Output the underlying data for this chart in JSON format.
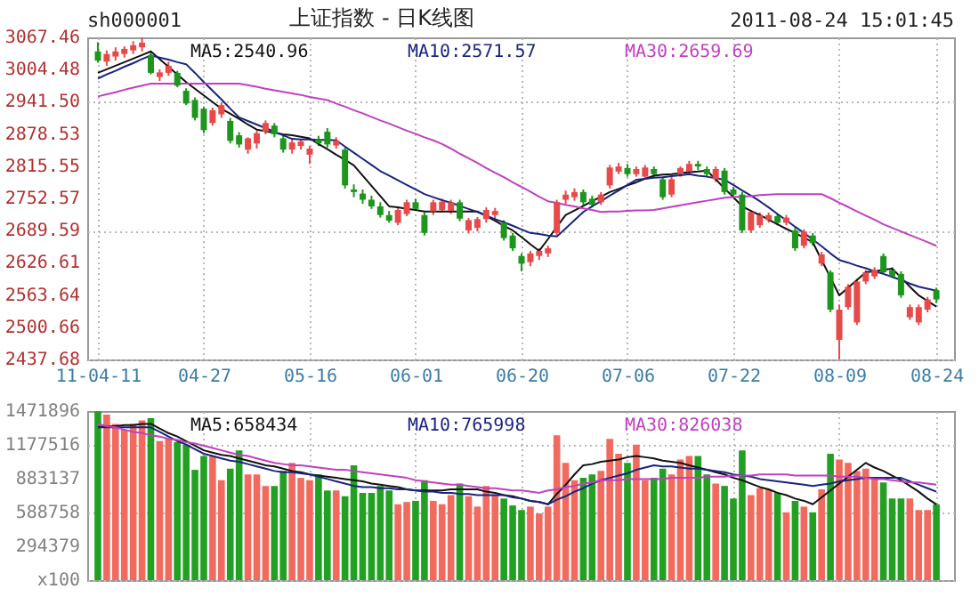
{
  "chart_data": [
    {
      "type": "candlestick",
      "title": "上证指数 - 日K线图",
      "annotations": [
        "sh000001",
        "2011-08-24 15:01:45"
      ],
      "categories": [
        "11-04-11",
        null,
        null,
        null,
        null,
        null,
        null,
        null,
        null,
        null,
        null,
        null,
        "04-27",
        null,
        null,
        null,
        null,
        null,
        null,
        null,
        null,
        null,
        null,
        null,
        "05-16",
        null,
        null,
        null,
        null,
        null,
        null,
        null,
        null,
        null,
        null,
        null,
        "06-01",
        null,
        null,
        null,
        null,
        null,
        null,
        null,
        null,
        null,
        null,
        null,
        "06-20",
        null,
        null,
        null,
        null,
        null,
        null,
        null,
        null,
        null,
        null,
        null,
        "07-06",
        null,
        null,
        null,
        null,
        null,
        null,
        null,
        null,
        null,
        null,
        null,
        "07-22",
        null,
        null,
        null,
        null,
        null,
        null,
        null,
        null,
        null,
        null,
        null,
        "08-09",
        null,
        null,
        null,
        null,
        null,
        null,
        null,
        null,
        null,
        null,
        "08-24"
      ],
      "ylim": [
        2437.68,
        3067.46
      ],
      "yticks": [
        2437.68,
        2500.66,
        2563.64,
        2626.61,
        2689.59,
        2752.57,
        2815.55,
        2878.53,
        {
          "value": 2941.5,
          "label": "2941.50"
        },
        3004.48,
        3067.46
      ],
      "grid": true,
      "legend": "top",
      "ohlc": [
        [
          3040,
          3058,
          3018,
          3022
        ],
        [
          3020,
          3042,
          3012,
          3035
        ],
        [
          3030,
          3048,
          3022,
          3040
        ],
        [
          3035,
          3050,
          3028,
          3045
        ],
        [
          3042,
          3060,
          3035,
          3052
        ],
        [
          3048,
          3067.46,
          3040,
          3057
        ],
        [
          3033,
          3040,
          2995,
          2998
        ],
        [
          2990,
          3005,
          2982,
          2999
        ],
        [
          2998,
          3020,
          2992,
          3012
        ],
        [
          2998,
          3002,
          2970,
          2973
        ],
        [
          2963,
          2968,
          2935,
          2938
        ],
        [
          2945,
          2950,
          2905,
          2910
        ],
        [
          2928,
          2932,
          2880,
          2886
        ],
        [
          2900,
          2930,
          2895,
          2925
        ],
        [
          2917,
          2940,
          2910,
          2935
        ],
        [
          2904,
          2910,
          2860,
          2865
        ],
        [
          2876,
          2882,
          2852,
          2858
        ],
        [
          2848,
          2872,
          2840,
          2870
        ],
        [
          2860,
          2885,
          2850,
          2880
        ],
        [
          2883,
          2905,
          2878,
          2900
        ],
        [
          2895,
          2900,
          2872,
          2878
        ],
        [
          2870,
          2875,
          2842,
          2848
        ],
        [
          2848,
          2868,
          2840,
          2862
        ],
        [
          2855,
          2868,
          2848,
          2864
        ],
        [
          2838,
          2855,
          2820,
          2850
        ],
        [
          2868,
          2875,
          2855,
          2860
        ],
        [
          2883,
          2890,
          2852,
          2858
        ],
        [
          2856,
          2872,
          2850,
          2866
        ],
        [
          2848,
          2852,
          2772,
          2778
        ],
        [
          2770,
          2780,
          2755,
          2765
        ],
        [
          2762,
          2770,
          2742,
          2750
        ],
        [
          2750,
          2758,
          2732,
          2737
        ],
        [
          2737,
          2745,
          2715,
          2720
        ],
        [
          2720,
          2728,
          2705,
          2709
        ],
        [
          2705,
          2735,
          2700,
          2730
        ],
        [
          2722,
          2750,
          2718,
          2745
        ],
        [
          2745,
          2752,
          2728,
          2732
        ],
        [
          2720,
          2725,
          2680,
          2685
        ],
        [
          2727,
          2750,
          2720,
          2745
        ],
        [
          2730,
          2752,
          2725,
          2746
        ],
        [
          2728,
          2750,
          2722,
          2745
        ],
        [
          2745,
          2750,
          2708,
          2713
        ],
        [
          2690,
          2714,
          2684,
          2710
        ],
        [
          2695,
          2716,
          2688,
          2712
        ],
        [
          2712,
          2735,
          2705,
          2730
        ],
        [
          2720,
          2734,
          2712,
          2728
        ],
        [
          2705,
          2710,
          2670,
          2675
        ],
        [
          2680,
          2685,
          2650,
          2655
        ],
        [
          2640,
          2645,
          2610,
          2625
        ],
        [
          2628,
          2650,
          2620,
          2645
        ],
        [
          2640,
          2655,
          2632,
          2650
        ],
        [
          2645,
          2660,
          2638,
          2655
        ],
        [
          2685,
          2750,
          2680,
          2745
        ],
        [
          2750,
          2768,
          2742,
          2760
        ],
        [
          2755,
          2772,
          2748,
          2765
        ],
        [
          2765,
          2770,
          2740,
          2745
        ],
        [
          2752,
          2758,
          2735,
          2740
        ],
        [
          2745,
          2765,
          2740,
          2760
        ],
        [
          2778,
          2818,
          2772,
          2813
        ],
        [
          2805,
          2822,
          2800,
          2815
        ],
        [
          2812,
          2820,
          2795,
          2800
        ],
        [
          2800,
          2815,
          2795,
          2810
        ],
        [
          2795,
          2818,
          2790,
          2813
        ],
        [
          2810,
          2815,
          2795,
          2800
        ],
        [
          2790,
          2795,
          2750,
          2755
        ],
        [
          2760,
          2795,
          2755,
          2790
        ],
        [
          2800,
          2815,
          2795,
          2812
        ],
        [
          2805,
          2826,
          2800,
          2820
        ],
        [
          2820,
          2826,
          2808,
          2815
        ],
        [
          2810,
          2815,
          2795,
          2800
        ],
        [
          2790,
          2815,
          2785,
          2810
        ],
        [
          2807,
          2812,
          2760,
          2765
        ],
        [
          2770,
          2775,
          2755,
          2760
        ],
        [
          2760,
          2765,
          2685,
          2690
        ],
        [
          2690,
          2730,
          2685,
          2726
        ],
        [
          2700,
          2725,
          2695,
          2720
        ],
        [
          2710,
          2725,
          2705,
          2720
        ],
        [
          2718,
          2722,
          2700,
          2705
        ],
        [
          2705,
          2720,
          2700,
          2715
        ],
        [
          2690,
          2695,
          2650,
          2655
        ],
        [
          2660,
          2692,
          2655,
          2688
        ],
        [
          2680,
          2685,
          2660,
          2665
        ],
        [
          2625,
          2648,
          2620,
          2643
        ],
        [
          2608,
          2612,
          2530,
          2535
        ],
        [
          2476,
          2545,
          2437.68,
          2535
        ],
        [
          2540,
          2585,
          2535,
          2580
        ],
        [
          2510,
          2595,
          2505,
          2590
        ],
        [
          2590,
          2612,
          2585,
          2608
        ],
        [
          2600,
          2618,
          2595,
          2612
        ],
        [
          2640,
          2645,
          2605,
          2608
        ],
        [
          2612,
          2618,
          2598,
          2600
        ],
        [
          2605,
          2610,
          2558,
          2563
        ],
        [
          2520,
          2545,
          2515,
          2540
        ],
        [
          2510,
          2545,
          2505,
          2540
        ],
        [
          2535,
          2560,
          2530,
          2555
        ],
        [
          2573,
          2578,
          2548,
          2555
        ]
      ],
      "colors": [
        "#1e961e",
        "#e84a4a",
        "#e84a4a",
        "#e84a4a",
        "#e84a4a",
        "#e84a4a",
        "#1e961e",
        "#e84a4a",
        "#e84a4a",
        "#1e961e",
        "#1e961e",
        "#1e961e",
        "#1e961e",
        "#e84a4a",
        "#e84a4a",
        "#1e961e",
        "#1e961e",
        "#e84a4a",
        "#e84a4a",
        "#e84a4a",
        "#1e961e",
        "#1e961e",
        "#e84a4a",
        "#e84a4a",
        "#e84a4a",
        "#1e961e",
        "#1e961e",
        "#e84a4a",
        "#1e961e",
        "#1e961e",
        "#1e961e",
        "#1e961e",
        "#1e961e",
        "#1e961e",
        "#e84a4a",
        "#e84a4a",
        "#1e961e",
        "#1e961e",
        "#e84a4a",
        "#e84a4a",
        "#e84a4a",
        "#1e961e",
        "#e84a4a",
        "#e84a4a",
        "#e84a4a",
        "#e84a4a",
        "#1e961e",
        "#1e961e",
        "#1e961e",
        "#e84a4a",
        "#e84a4a",
        "#e84a4a",
        "#e84a4a",
        "#e84a4a",
        "#e84a4a",
        "#1e961e",
        "#1e961e",
        "#e84a4a",
        "#e84a4a",
        "#e84a4a",
        "#1e961e",
        "#e84a4a",
        "#e84a4a",
        "#1e961e",
        "#1e961e",
        "#e84a4a",
        "#e84a4a",
        "#e84a4a",
        "#1e961e",
        "#1e961e",
        "#e84a4a",
        "#1e961e",
        "#1e961e",
        "#1e961e",
        "#e84a4a",
        "#e84a4a",
        "#e84a4a",
        "#1e961e",
        "#e84a4a",
        "#1e961e",
        "#e84a4a",
        "#1e961e",
        "#e84a4a",
        "#1e961e",
        "#e84a4a",
        "#e84a4a",
        "#e84a4a",
        "#e84a4a",
        "#e84a4a",
        "#1e961e",
        "#1e961e",
        "#1e961e",
        "#e84a4a",
        "#e84a4a",
        "#e84a4a",
        "#1e961e"
      ],
      "series": [
        {
          "type": "line",
          "name": "MA5:2540.96",
          "color": "#111111",
          "values": [
            2998,
            3005,
            3012,
            3019,
            3026,
            3033,
            3040,
            3025,
            3010,
            2995,
            2980,
            2967,
            2954,
            2941,
            2928,
            2918,
            2908,
            2897,
            2887,
            2884,
            2881,
            2878,
            2876,
            2873,
            2870,
            2859,
            2849,
            2838,
            2828,
            2817,
            2797,
            2777,
            2757,
            2737,
            2735,
            2732,
            2730,
            2727,
            2727,
            2727,
            2727,
            2727,
            2727,
            2727,
            2718,
            2709,
            2699,
            2690,
            2677,
            2663,
            2650,
            2673,
            2697,
            2720,
            2729,
            2738,
            2747,
            2756,
            2765,
            2771,
            2778,
            2784,
            2791,
            2797,
            2799,
            2800,
            2802,
            2804,
            2805,
            2807,
            2790,
            2772,
            2755,
            2737,
            2728,
            2720,
            2711,
            2702,
            2693,
            2685,
            2676,
            2667,
            2632,
            2598,
            2563,
            2578,
            2593,
            2608,
            2610,
            2613,
            2615,
            2598,
            2580,
            2563,
            2552,
            2541
          ]
        },
        {
          "type": "line",
          "name": "MA10:2571.57",
          "color": "#1a237e",
          "values": [
            2987,
            2995,
            3002,
            3010,
            3017,
            3025,
            3032,
            3028,
            3024,
            3019,
            3015,
            2998,
            2980,
            2963,
            2946,
            2928,
            2911,
            2904,
            2897,
            2890,
            2883,
            2876,
            2869,
            2868,
            2868,
            2867,
            2867,
            2866,
            2854,
            2842,
            2830,
            2818,
            2806,
            2797,
            2788,
            2779,
            2770,
            2761,
            2755,
            2749,
            2744,
            2738,
            2732,
            2726,
            2719,
            2712,
            2706,
            2699,
            2692,
            2685,
            2683,
            2680,
            2678,
            2694,
            2710,
            2726,
            2737,
            2747,
            2758,
            2768,
            2779,
            2789,
            2791,
            2793,
            2794,
            2796,
            2798,
            2800,
            2797,
            2795,
            2792,
            2789,
            2779,
            2768,
            2758,
            2747,
            2735,
            2722,
            2710,
            2697,
            2685,
            2672,
            2659,
            2645,
            2632,
            2627,
            2621,
            2616,
            2610,
            2605,
            2599,
            2593,
            2586,
            2580,
            2576,
            2572
          ]
        },
        {
          "type": "line",
          "name": "MA30:2659.69",
          "color": "#c040c0",
          "values": [
            2952,
            2956,
            2960,
            2965,
            2969,
            2973,
            2977,
            2977,
            2977,
            2977,
            2977,
            2977,
            2977,
            2977,
            2977,
            2977,
            2977,
            2974,
            2971,
            2967,
            2964,
            2961,
            2958,
            2955,
            2951,
            2948,
            2945,
            2938,
            2932,
            2925,
            2919,
            2912,
            2905,
            2899,
            2892,
            2885,
            2879,
            2872,
            2866,
            2859,
            2850,
            2840,
            2831,
            2822,
            2812,
            2803,
            2794,
            2784,
            2775,
            2766,
            2756,
            2747,
            2744,
            2740,
            2737,
            2733,
            2730,
            2726,
            2727,
            2727,
            2728,
            2729,
            2729,
            2730,
            2733,
            2736,
            2739,
            2742,
            2745,
            2748,
            2751,
            2754,
            2755,
            2756,
            2757,
            2759,
            2760,
            2761,
            2761,
            2761,
            2761,
            2761,
            2761,
            2753,
            2744,
            2736,
            2727,
            2719,
            2711,
            2702,
            2695,
            2688,
            2681,
            2674,
            2667,
            2660
          ]
        }
      ]
    },
    {
      "type": "bar",
      "categories": [
        null,
        null,
        null,
        null,
        null,
        null,
        null,
        null,
        null,
        null,
        null,
        null,
        null,
        null,
        null,
        null,
        null,
        null,
        null,
        null,
        null,
        null,
        null,
        null,
        null,
        null,
        null,
        null,
        null,
        null,
        null,
        null,
        null,
        null,
        null,
        null,
        null,
        null,
        null,
        null,
        null,
        null,
        null,
        null,
        null,
        null,
        null,
        null,
        null,
        null,
        null,
        null,
        null,
        null,
        null,
        null,
        null,
        null,
        null,
        null,
        null,
        null,
        null,
        null,
        null,
        null,
        null,
        null,
        null,
        null,
        null,
        null,
        null,
        null,
        null,
        null,
        null,
        null,
        null,
        null,
        null,
        null,
        null,
        null,
        null,
        null,
        null,
        null,
        null,
        null,
        null,
        null,
        null,
        null,
        null,
        null
      ],
      "tick_labels": "y",
      "ylim": [
        0,
        1471896
      ],
      "yticks": [
        {
          "value": 0,
          "label": "x100"
        },
        294379,
        588758,
        883137,
        1177516,
        1471896
      ],
      "grid": true,
      "legend": "top",
      "series": [
        {
          "type": "bar",
          "values": [
            1470000,
            1440000,
            1360000,
            1310000,
            1360000,
            1390000,
            1410000,
            1210000,
            1230000,
            1200000,
            1180000,
            960000,
            1080000,
            1080000,
            870000,
            970000,
            1130000,
            920000,
            920000,
            820000,
            820000,
            950000,
            1020000,
            890000,
            870000,
            920000,
            780000,
            780000,
            730000,
            1000000,
            760000,
            760000,
            820000,
            780000,
            660000,
            680000,
            690000,
            870000,
            690000,
            660000,
            740000,
            840000,
            730000,
            640000,
            820000,
            740000,
            710000,
            650000,
            610000,
            640000,
            580000,
            640000,
            1260000,
            1020000,
            870000,
            890000,
            920000,
            950000,
            1230000,
            1100000,
            1020000,
            1180000,
            870000,
            890000,
            970000,
            920000,
            1050000,
            1080000,
            1080000,
            920000,
            840000,
            820000,
            710000,
            1130000,
            740000,
            800000,
            790000,
            760000,
            590000,
            690000,
            640000,
            590000,
            790000,
            1100000,
            1050000,
            1020000,
            950000,
            970000,
            890000,
            850000,
            710000,
            710000,
            710000,
            610000,
            610000,
            660000
          ],
          "colors": [
            "#22a022",
            "#f26a5e",
            "#f26a5e",
            "#f26a5e",
            "#f26a5e",
            "#f26a5e",
            "#22a022",
            "#f26a5e",
            "#f26a5e",
            "#22a022",
            "#22a022",
            "#22a022",
            "#22a022",
            "#f26a5e",
            "#f26a5e",
            "#22a022",
            "#22a022",
            "#f26a5e",
            "#f26a5e",
            "#f26a5e",
            "#22a022",
            "#22a022",
            "#f26a5e",
            "#f26a5e",
            "#f26a5e",
            "#22a022",
            "#22a022",
            "#f26a5e",
            "#22a022",
            "#22a022",
            "#22a022",
            "#22a022",
            "#22a022",
            "#22a022",
            "#f26a5e",
            "#f26a5e",
            "#22a022",
            "#22a022",
            "#f26a5e",
            "#f26a5e",
            "#f26a5e",
            "#22a022",
            "#f26a5e",
            "#f26a5e",
            "#f26a5e",
            "#f26a5e",
            "#22a022",
            "#22a022",
            "#22a022",
            "#f26a5e",
            "#f26a5e",
            "#f26a5e",
            "#f26a5e",
            "#f26a5e",
            "#f26a5e",
            "#22a022",
            "#22a022",
            "#f26a5e",
            "#f26a5e",
            "#f26a5e",
            "#22a022",
            "#f26a5e",
            "#f26a5e",
            "#22a022",
            "#22a022",
            "#f26a5e",
            "#f26a5e",
            "#f26a5e",
            "#22a022",
            "#22a022",
            "#f26a5e",
            "#22a022",
            "#22a022",
            "#22a022",
            "#f26a5e",
            "#f26a5e",
            "#f26a5e",
            "#22a022",
            "#f26a5e",
            "#22a022",
            "#f26a5e",
            "#22a022",
            "#f26a5e",
            "#22a022",
            "#f26a5e",
            "#f26a5e",
            "#f26a5e",
            "#f26a5e",
            "#f26a5e",
            "#22a022",
            "#22a022",
            "#22a022",
            "#f26a5e",
            "#f26a5e",
            "#f26a5e",
            "#22a022"
          ]
        },
        {
          "type": "line",
          "name": "MA5:658434",
          "color": "#111111",
          "values": [
            1330000,
            1340000,
            1340000,
            1350000,
            1350000,
            1360000,
            1360000,
            1320000,
            1280000,
            1250000,
            1210000,
            1170000,
            1130000,
            1110000,
            1090000,
            1080000,
            1060000,
            1040000,
            1020000,
            1000000,
            990000,
            970000,
            950000,
            940000,
            920000,
            910000,
            900000,
            890000,
            880000,
            870000,
            860000,
            840000,
            830000,
            820000,
            810000,
            790000,
            780000,
            780000,
            780000,
            780000,
            790000,
            790000,
            790000,
            790000,
            770000,
            760000,
            740000,
            730000,
            710000,
            690000,
            680000,
            660000,
            750000,
            830000,
            920000,
            1000000,
            1010000,
            1030000,
            1040000,
            1050000,
            1070000,
            1080000,
            1070000,
            1060000,
            1040000,
            1030000,
            1020000,
            1000000,
            980000,
            960000,
            940000,
            920000,
            890000,
            870000,
            840000,
            810000,
            790000,
            760000,
            740000,
            710000,
            690000,
            660000,
            720000,
            780000,
            840000,
            900000,
            960000,
            1020000,
            980000,
            950000,
            910000,
            870000,
            820000,
            770000,
            710000,
            660000
          ]
        },
        {
          "type": "line",
          "name": "MA10:765998",
          "color": "#1a237e",
          "values": [
            1330000,
            1330000,
            1330000,
            1330000,
            1330000,
            1330000,
            1330000,
            1290000,
            1250000,
            1210000,
            1180000,
            1140000,
            1100000,
            1080000,
            1060000,
            1040000,
            1030000,
            1010000,
            990000,
            970000,
            950000,
            940000,
            940000,
            930000,
            920000,
            900000,
            880000,
            860000,
            840000,
            820000,
            810000,
            810000,
            800000,
            800000,
            790000,
            790000,
            780000,
            770000,
            770000,
            760000,
            760000,
            750000,
            750000,
            740000,
            740000,
            740000,
            740000,
            720000,
            710000,
            690000,
            680000,
            660000,
            700000,
            730000,
            770000,
            800000,
            840000,
            870000,
            890000,
            910000,
            930000,
            960000,
            980000,
            1000000,
            990000,
            990000,
            980000,
            970000,
            970000,
            960000,
            950000,
            940000,
            920000,
            910000,
            900000,
            880000,
            870000,
            860000,
            850000,
            840000,
            830000,
            820000,
            830000,
            840000,
            860000,
            870000,
            880000,
            890000,
            890000,
            890000,
            890000,
            890000,
            860000,
            830000,
            800000,
            770000
          ]
        },
        {
          "type": "line",
          "name": "MA30:826038",
          "color": "#c040c0",
          "values": [
            1360000,
            1340000,
            1330000,
            1310000,
            1290000,
            1280000,
            1260000,
            1250000,
            1230000,
            1220000,
            1200000,
            1190000,
            1170000,
            1150000,
            1130000,
            1110000,
            1090000,
            1080000,
            1060000,
            1040000,
            1020000,
            1010000,
            1000000,
            1000000,
            990000,
            980000,
            970000,
            960000,
            960000,
            950000,
            940000,
            930000,
            920000,
            910000,
            900000,
            890000,
            870000,
            860000,
            850000,
            840000,
            830000,
            830000,
            820000,
            810000,
            800000,
            800000,
            790000,
            780000,
            780000,
            770000,
            760000,
            780000,
            790000,
            810000,
            820000,
            840000,
            850000,
            870000,
            870000,
            870000,
            880000,
            880000,
            880000,
            880000,
            880000,
            890000,
            890000,
            890000,
            890000,
            900000,
            900000,
            900000,
            910000,
            910000,
            910000,
            920000,
            920000,
            920000,
            920000,
            910000,
            910000,
            910000,
            910000,
            910000,
            900000,
            900000,
            900000,
            890000,
            880000,
            880000,
            870000,
            860000,
            850000,
            850000,
            840000,
            830000
          ]
        }
      ]
    }
  ]
}
